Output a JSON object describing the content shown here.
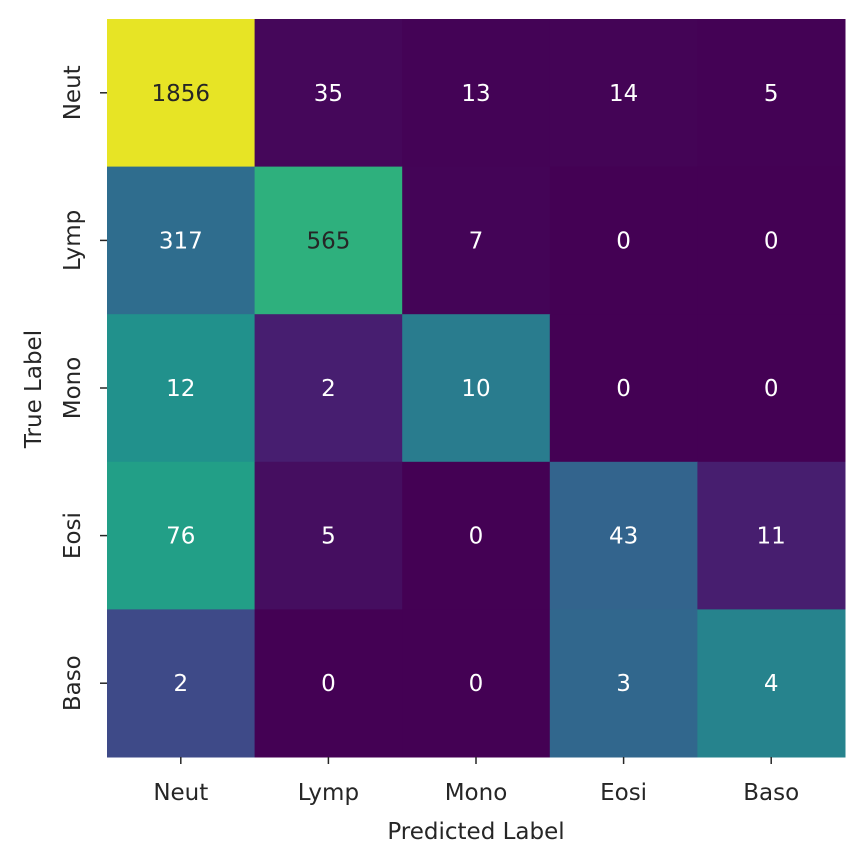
{
  "chart_data": {
    "type": "heatmap",
    "title": "",
    "xlabel": "Predicted Label",
    "ylabel": "True Label",
    "x_categories": [
      "Neut",
      "Lymp",
      "Mono",
      "Eosi",
      "Baso"
    ],
    "y_categories": [
      "Neut",
      "Lymp",
      "Mono",
      "Eosi",
      "Baso"
    ],
    "values": [
      [
        1856,
        35,
        13,
        14,
        5
      ],
      [
        317,
        565,
        7,
        0,
        0
      ],
      [
        12,
        2,
        10,
        0,
        0
      ],
      [
        76,
        5,
        0,
        43,
        11
      ],
      [
        2,
        0,
        0,
        3,
        4
      ]
    ],
    "colormap": "viridis",
    "normalization": "row",
    "colorbar": false,
    "grid": false,
    "legend": "none"
  }
}
